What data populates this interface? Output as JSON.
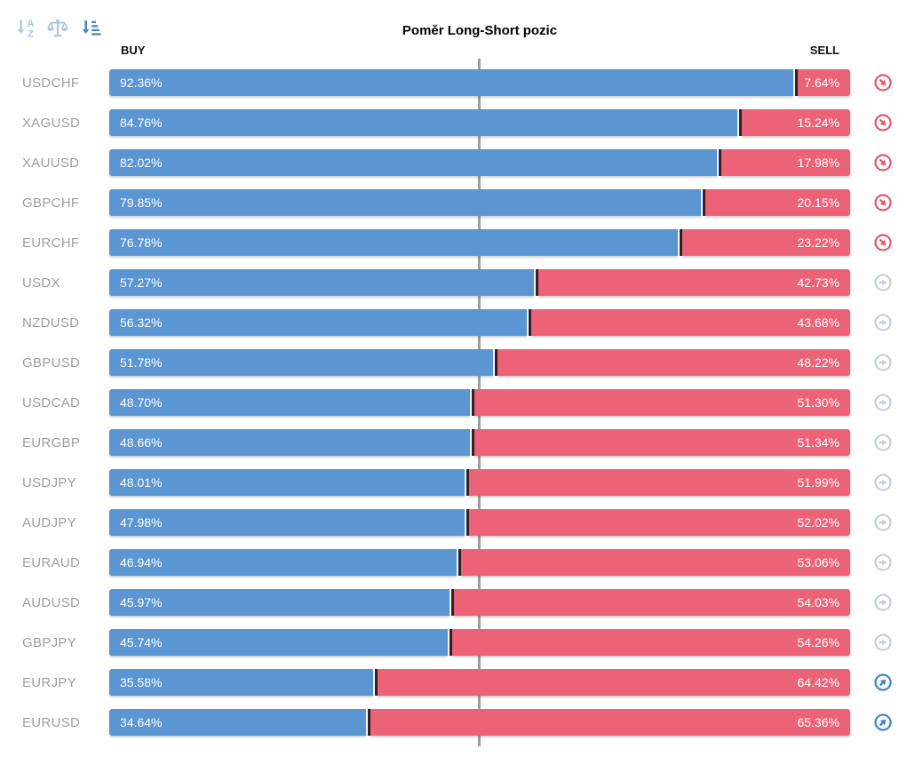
{
  "title": "Poměr Long-Short pozic",
  "header": {
    "buy_label": "BUY",
    "sell_label": "SELL"
  },
  "toolbar": {
    "icons": [
      {
        "name": "sort-alphabetical-icon",
        "active": false
      },
      {
        "name": "balance-scale-icon",
        "active": false
      },
      {
        "name": "sort-amount-desc-icon",
        "active": true
      }
    ]
  },
  "colors": {
    "buy-bar": "#5b96d3",
    "sell-bar": "#ec6377",
    "divider": "#302228",
    "center-line": "#9e9e9e",
    "pair-label": "#9e9e9e",
    "icon-down": "#e8566c",
    "icon-flat": "#c6cedb",
    "icon-up": "#3d84c7",
    "toolbar-icon": "#abc6e4",
    "toolbar-icon-active": "#4d86c6"
  },
  "chart_data": {
    "type": "bar",
    "orientation": "horizontal",
    "stacked": true,
    "title": "Poměr Long-Short pozic",
    "xlim": [
      0,
      100
    ],
    "center_reference_line": 50,
    "legend": [
      "BUY",
      "SELL"
    ],
    "categories": [
      "USDCHF",
      "XAGUSD",
      "XAUUSD",
      "GBPCHF",
      "EURCHF",
      "USDX",
      "NZDUSD",
      "GBPUSD",
      "USDCAD",
      "EURGBP",
      "USDJPY",
      "AUDJPY",
      "EURAUD",
      "AUDUSD",
      "GBPJPY",
      "EURJPY",
      "EURUSD"
    ],
    "series": [
      {
        "name": "BUY",
        "values": [
          92.36,
          84.76,
          82.02,
          79.85,
          76.78,
          57.27,
          56.32,
          51.78,
          48.7,
          48.66,
          48.01,
          47.98,
          46.94,
          45.97,
          45.74,
          35.58,
          34.64
        ]
      },
      {
        "name": "SELL",
        "values": [
          7.64,
          15.24,
          17.98,
          20.15,
          23.22,
          42.73,
          43.68,
          48.22,
          51.3,
          51.34,
          51.99,
          52.02,
          53.06,
          54.03,
          54.26,
          64.42,
          65.36
        ]
      }
    ],
    "rows": [
      {
        "pair": "USDCHF",
        "buy": 92.36,
        "sell": 7.64,
        "buy_label": "92.36%",
        "sell_label": "7.64%",
        "trend": "down"
      },
      {
        "pair": "XAGUSD",
        "buy": 84.76,
        "sell": 15.24,
        "buy_label": "84.76%",
        "sell_label": "15.24%",
        "trend": "down"
      },
      {
        "pair": "XAUUSD",
        "buy": 82.02,
        "sell": 17.98,
        "buy_label": "82.02%",
        "sell_label": "17.98%",
        "trend": "down"
      },
      {
        "pair": "GBPCHF",
        "buy": 79.85,
        "sell": 20.15,
        "buy_label": "79.85%",
        "sell_label": "20.15%",
        "trend": "down"
      },
      {
        "pair": "EURCHF",
        "buy": 76.78,
        "sell": 23.22,
        "buy_label": "76.78%",
        "sell_label": "23.22%",
        "trend": "down"
      },
      {
        "pair": "USDX",
        "buy": 57.27,
        "sell": 42.73,
        "buy_label": "57.27%",
        "sell_label": "42.73%",
        "trend": "flat"
      },
      {
        "pair": "NZDUSD",
        "buy": 56.32,
        "sell": 43.68,
        "buy_label": "56.32%",
        "sell_label": "43.68%",
        "trend": "flat"
      },
      {
        "pair": "GBPUSD",
        "buy": 51.78,
        "sell": 48.22,
        "buy_label": "51.78%",
        "sell_label": "48.22%",
        "trend": "flat"
      },
      {
        "pair": "USDCAD",
        "buy": 48.7,
        "sell": 51.3,
        "buy_label": "48.70%",
        "sell_label": "51.30%",
        "trend": "flat"
      },
      {
        "pair": "EURGBP",
        "buy": 48.66,
        "sell": 51.34,
        "buy_label": "48.66%",
        "sell_label": "51.34%",
        "trend": "flat"
      },
      {
        "pair": "USDJPY",
        "buy": 48.01,
        "sell": 51.99,
        "buy_label": "48.01%",
        "sell_label": "51.99%",
        "trend": "flat"
      },
      {
        "pair": "AUDJPY",
        "buy": 47.98,
        "sell": 52.02,
        "buy_label": "47.98%",
        "sell_label": "52.02%",
        "trend": "flat"
      },
      {
        "pair": "EURAUD",
        "buy": 46.94,
        "sell": 53.06,
        "buy_label": "46.94%",
        "sell_label": "53.06%",
        "trend": "flat"
      },
      {
        "pair": "AUDUSD",
        "buy": 45.97,
        "sell": 54.03,
        "buy_label": "45.97%",
        "sell_label": "54.03%",
        "trend": "flat"
      },
      {
        "pair": "GBPJPY",
        "buy": 45.74,
        "sell": 54.26,
        "buy_label": "45.74%",
        "sell_label": "54.26%",
        "trend": "flat"
      },
      {
        "pair": "EURJPY",
        "buy": 35.58,
        "sell": 64.42,
        "buy_label": "35.58%",
        "sell_label": "64.42%",
        "trend": "up"
      },
      {
        "pair": "EURUSD",
        "buy": 34.64,
        "sell": 65.36,
        "buy_label": "34.64%",
        "sell_label": "65.36%",
        "trend": "up"
      }
    ]
  }
}
